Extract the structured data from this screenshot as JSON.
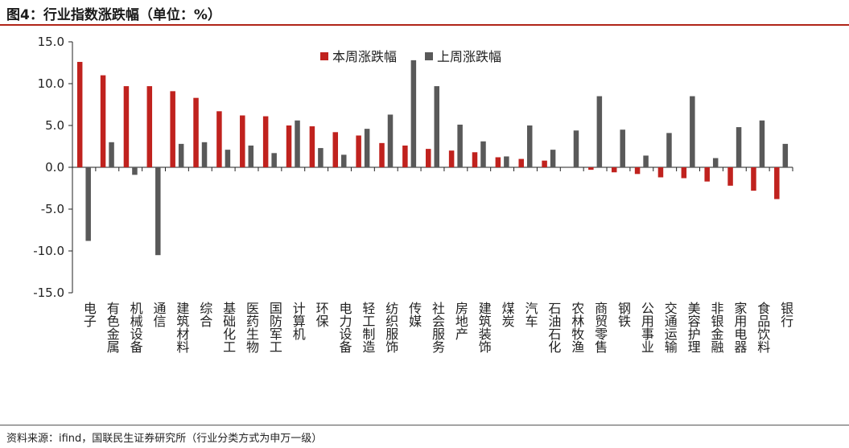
{
  "header": {
    "title": "图4：行业指数涨跌幅（单位：%）"
  },
  "footer": {
    "source": "资料来源：ifind，国联民生证券研究所（行业分类方式为申万一级）"
  },
  "colors": {
    "current": "#c0221e",
    "previous": "#595959",
    "accent_rule": "#b02418"
  },
  "chart_data": {
    "type": "bar",
    "title": "",
    "xlabel": "",
    "ylabel": "",
    "ylim": [
      -15,
      15
    ],
    "yticks": [
      "15.0",
      "10.0",
      "5.0",
      "0.0",
      "-5.0",
      "-10.0",
      "-15.0"
    ],
    "grid": false,
    "legend_position": "top-center",
    "categories": [
      "电子",
      "有色金属",
      "机械设备",
      "通信",
      "建筑材料",
      "综合",
      "基础化工",
      "医药生物",
      "国防军工",
      "计算机",
      "环保",
      "电力设备",
      "轻工制造",
      "纺织服饰",
      "传媒",
      "社会服务",
      "房地产",
      "建筑装饰",
      "煤炭",
      "汽车",
      "石油石化",
      "农林牧渔",
      "商贸零售",
      "钢铁",
      "公用事业",
      "交通运输",
      "美容护理",
      "非银金融",
      "家用电器",
      "食品饮料",
      "银行"
    ],
    "series": [
      {
        "name": "本周涨跌幅",
        "values": [
          12.6,
          11.0,
          9.7,
          9.7,
          9.1,
          8.3,
          6.7,
          6.2,
          6.1,
          5.0,
          4.9,
          4.2,
          3.8,
          2.9,
          2.6,
          2.2,
          2.0,
          1.8,
          1.2,
          1.0,
          0.8,
          0.0,
          -0.3,
          -0.6,
          -0.8,
          -1.2,
          -1.3,
          -1.7,
          -2.2,
          -2.8,
          -3.8
        ]
      },
      {
        "name": "上周涨跌幅",
        "values": [
          -8.8,
          3.0,
          -0.9,
          -10.5,
          2.8,
          3.0,
          2.1,
          2.6,
          1.7,
          5.6,
          2.3,
          1.5,
          4.6,
          6.3,
          12.8,
          9.7,
          5.1,
          3.1,
          1.3,
          5.0,
          2.1,
          4.4,
          8.5,
          4.5,
          1.4,
          4.1,
          8.5,
          1.1,
          4.8,
          5.6,
          2.8
        ]
      }
    ]
  }
}
